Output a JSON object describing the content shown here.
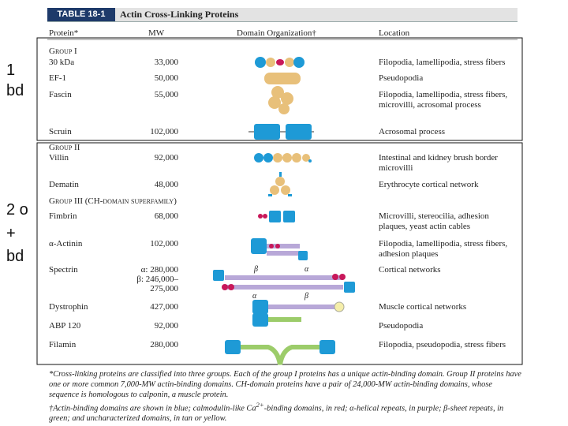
{
  "header": {
    "table_number": "TABLE 18-1",
    "title": "Actin Cross-Linking Proteins"
  },
  "columns": [
    "Protein*",
    "MW",
    "Domain Organization†",
    "Location"
  ],
  "side_labels": [
    [
      "1",
      "bd"
    ],
    [
      "2 o",
      "+",
      "bd"
    ]
  ],
  "groups": [
    {
      "label": "Group I",
      "rows": [
        {
          "protein": "30 kDa",
          "mw": [
            "33,000"
          ],
          "location": "Filopodia, lamellipodia, stress fibers"
        },
        {
          "protein": "EF-1",
          "mw": [
            "50,000"
          ],
          "location": "Pseudopodia"
        },
        {
          "protein": "Fascin",
          "mw": [
            "55,000"
          ],
          "location": "Filopodia, lamellipodia, stress fibers, microvilli, acrosomal process"
        },
        {
          "protein": "Scruin",
          "mw": [
            "102,000"
          ],
          "location": "Acrosomal process"
        }
      ]
    },
    {
      "label": "Group II",
      "rows": [
        {
          "protein": "Villin",
          "mw": [
            "92,000"
          ],
          "location": "Intestinal and kidney brush border microvilli"
        },
        {
          "protein": "Dematin",
          "mw": [
            "48,000"
          ],
          "location": "Erythrocyte cortical network"
        }
      ]
    },
    {
      "label": "Group III (CH-domain superfamily)",
      "rows": [
        {
          "protein": "Fimbrin",
          "mw": [
            "68,000"
          ],
          "location": "Microvilli, stereocilia, adhesion plaques, yeast actin cables"
        },
        {
          "protein": "α-Actinin",
          "mw": [
            "102,000"
          ],
          "location": "Filopodia, lamellipodia, stress fibers, adhesion plaques"
        },
        {
          "protein": "Spectrin",
          "mw": [
            "α: 280,000",
            "β: 246,000–",
            "275,000"
          ],
          "location": "Cortical networks"
        },
        {
          "protein": "Dystrophin",
          "mw": [
            "427,000"
          ],
          "location": "Muscle cortical networks"
        },
        {
          "protein": "ABP 120",
          "mw": [
            "92,000"
          ],
          "location": "Pseudopodia"
        },
        {
          "protein": "Filamin",
          "mw": [
            "280,000"
          ],
          "location": "Filopodia, pseudopodia, stress fibers"
        }
      ]
    }
  ],
  "diagram_labels": {
    "beta_top": "β",
    "alpha_top": "α",
    "alpha_bottom": "α",
    "beta_bottom": "β"
  },
  "footnotes": {
    "first": "*Cross-linking proteins are classified into three groups. Each of the group I proteins has a unique actin-binding domain. Group II proteins have one or more common 7,000-MW actin-binding domains. CH-domain proteins have a pair of 24,000-MW actin-binding domains, whose sequence is homologous to calponin, a muscle protein.",
    "second_before": "†Actin-binding domains are shown in blue; calmodulin-like Ca",
    "second_sup": "2+",
    "second_after": "-binding domains, in red; α-helical repeats, in purple; β-sheet repeats, in green; and uncharacterized domains, in tan or yellow."
  }
}
